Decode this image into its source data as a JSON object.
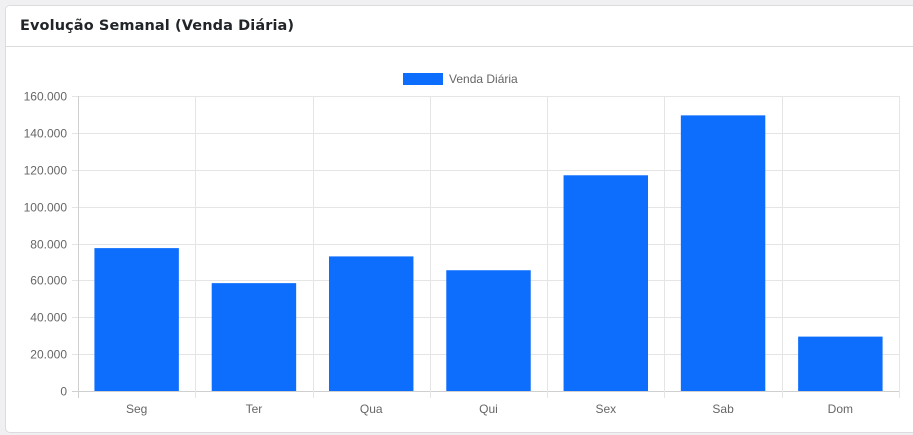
{
  "card": {
    "title": "Evolução Semanal (Venda Diária)"
  },
  "chart_data": {
    "type": "bar",
    "categories": [
      "Seg",
      "Ter",
      "Qua",
      "Qui",
      "Sex",
      "Sab",
      "Dom"
    ],
    "series": [
      {
        "name": "Venda Diária",
        "color": "#0d6efd",
        "values": [
          77500,
          58500,
          73000,
          65500,
          117000,
          149500,
          29500
        ]
      }
    ],
    "ylim": [
      0,
      160000
    ],
    "yticks": [
      0,
      20000,
      40000,
      60000,
      80000,
      100000,
      120000,
      140000,
      160000
    ],
    "ytick_labels": [
      "0",
      "20.000",
      "40.000",
      "60.000",
      "80.000",
      "100.000",
      "120.000",
      "140.000",
      "160.000"
    ],
    "grid": true,
    "legend_position": "top-center",
    "title": "",
    "xlabel": "",
    "ylabel": ""
  }
}
